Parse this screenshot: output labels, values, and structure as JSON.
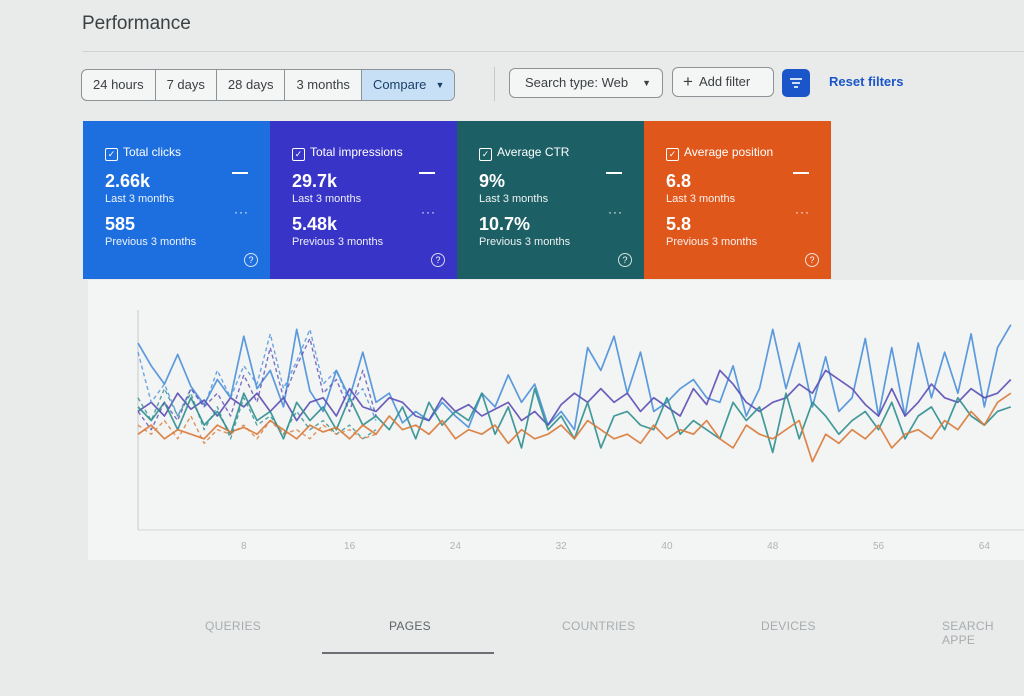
{
  "header": {
    "title": "Performance"
  },
  "toolbar": {
    "ranges": [
      "24 hours",
      "7 days",
      "28 days",
      "3 months",
      "Compare"
    ],
    "search_type": "Search type: Web",
    "add_filter": "Add filter",
    "reset_filters": "Reset filters"
  },
  "metrics": [
    {
      "label": "Total clicks",
      "current": "2.66k",
      "current_period": "Last 3 months",
      "previous": "585",
      "previous_period": "Previous 3 months",
      "color": "#1d6fe0"
    },
    {
      "label": "Total impressions",
      "current": "29.7k",
      "current_period": "Last 3 months",
      "previous": "5.48k",
      "previous_period": "Previous 3 months",
      "color": "#3834c7"
    },
    {
      "label": "Average CTR",
      "current": "9%",
      "current_period": "Last 3 months",
      "previous": "10.7%",
      "previous_period": "Previous 3 months",
      "color": "#1c5f65"
    },
    {
      "label": "Average position",
      "current": "6.8",
      "current_period": "Last 3 months",
      "previous": "5.8",
      "previous_period": "Previous 3 months",
      "color": "#e0571c"
    }
  ],
  "chart_data": {
    "type": "line",
    "x_ticks": [
      "8",
      "16",
      "24",
      "32",
      "40",
      "48",
      "56",
      "64"
    ],
    "x_range": [
      0,
      67
    ],
    "y_range": [
      0,
      1
    ],
    "grid": false,
    "series": [
      {
        "color": "#4a90d9",
        "style": "solid",
        "values": [
          0.82,
          0.72,
          0.64,
          0.77,
          0.63,
          0.55,
          0.66,
          0.58,
          0.85,
          0.62,
          0.7,
          0.54,
          0.88,
          0.61,
          0.52,
          0.7,
          0.58,
          0.78,
          0.56,
          0.6,
          0.47,
          0.52,
          0.48,
          0.56,
          0.5,
          0.45,
          0.6,
          0.54,
          0.68,
          0.56,
          0.64,
          0.46,
          0.52,
          0.44,
          0.8,
          0.7,
          0.85,
          0.6,
          0.78,
          0.52,
          0.56,
          0.62,
          0.66,
          0.58,
          0.56,
          0.72,
          0.5,
          0.62,
          0.88,
          0.62,
          0.82,
          0.54,
          0.76,
          0.52,
          0.58,
          0.84,
          0.5,
          0.8,
          0.5,
          0.82,
          0.58,
          0.78,
          0.6,
          0.86,
          0.54,
          0.8,
          0.9
        ]
      },
      {
        "color": "#5b4fb5",
        "style": "solid",
        "values": [
          0.52,
          0.56,
          0.5,
          0.6,
          0.53,
          0.57,
          0.5,
          0.58,
          0.54,
          0.6,
          0.52,
          0.58,
          0.48,
          0.56,
          0.58,
          0.5,
          0.62,
          0.54,
          0.52,
          0.58,
          0.56,
          0.5,
          0.48,
          0.58,
          0.52,
          0.55,
          0.5,
          0.53,
          0.56,
          0.48,
          0.52,
          0.46,
          0.55,
          0.6,
          0.56,
          0.62,
          0.56,
          0.6,
          0.52,
          0.58,
          0.54,
          0.5,
          0.62,
          0.55,
          0.7,
          0.64,
          0.56,
          0.52,
          0.56,
          0.58,
          0.64,
          0.6,
          0.7,
          0.66,
          0.62,
          0.55,
          0.5,
          0.62,
          0.5,
          0.56,
          0.64,
          0.58,
          0.56,
          0.62,
          0.58,
          0.6,
          0.66
        ]
      },
      {
        "color": "#2f8f8f",
        "style": "solid",
        "values": [
          0.54,
          0.48,
          0.56,
          0.44,
          0.58,
          0.46,
          0.52,
          0.42,
          0.6,
          0.48,
          0.52,
          0.4,
          0.56,
          0.48,
          0.54,
          0.44,
          0.58,
          0.46,
          0.5,
          0.44,
          0.54,
          0.4,
          0.56,
          0.46,
          0.52,
          0.48,
          0.6,
          0.42,
          0.54,
          0.36,
          0.62,
          0.44,
          0.5,
          0.4,
          0.56,
          0.36,
          0.5,
          0.52,
          0.46,
          0.44,
          0.58,
          0.42,
          0.48,
          0.44,
          0.4,
          0.56,
          0.48,
          0.54,
          0.34,
          0.6,
          0.4,
          0.56,
          0.5,
          0.42,
          0.48,
          0.52,
          0.44,
          0.56,
          0.4,
          0.5,
          0.54,
          0.44,
          0.58,
          0.5,
          0.46,
          0.52,
          0.54
        ]
      },
      {
        "color": "#d97a3a",
        "style": "solid",
        "values": [
          0.42,
          0.46,
          0.4,
          0.44,
          0.42,
          0.4,
          0.46,
          0.43,
          0.45,
          0.42,
          0.48,
          0.44,
          0.4,
          0.46,
          0.43,
          0.45,
          0.4,
          0.46,
          0.42,
          0.5,
          0.44,
          0.46,
          0.42,
          0.48,
          0.4,
          0.44,
          0.42,
          0.46,
          0.38,
          0.44,
          0.4,
          0.42,
          0.46,
          0.4,
          0.48,
          0.44,
          0.4,
          0.42,
          0.38,
          0.46,
          0.4,
          0.44,
          0.42,
          0.48,
          0.4,
          0.36,
          0.46,
          0.42,
          0.4,
          0.44,
          0.48,
          0.3,
          0.42,
          0.38,
          0.44,
          0.4,
          0.46,
          0.36,
          0.42,
          0.44,
          0.4,
          0.48,
          0.44,
          0.52,
          0.46,
          0.56,
          0.6
        ]
      },
      {
        "color": "#4a90d9",
        "style": "dashed",
        "values": [
          0.78,
          0.56,
          0.64,
          0.5,
          0.62,
          0.54,
          0.7,
          0.58,
          0.72,
          0.64,
          0.86,
          0.62,
          0.74,
          0.88,
          0.64,
          0.7,
          0.56,
          0.62,
          0.48
        ]
      },
      {
        "color": "#5b4fb5",
        "style": "dashed",
        "values": [
          0.52,
          0.44,
          0.56,
          0.48,
          0.62,
          0.54,
          0.6,
          0.5,
          0.68,
          0.56,
          0.8,
          0.58,
          0.72,
          0.84,
          0.6,
          0.66,
          0.52,
          0.7,
          0.5
        ]
      },
      {
        "color": "#2f8f8f",
        "style": "dashed",
        "values": [
          0.58,
          0.48,
          0.62,
          0.5,
          0.6,
          0.44,
          0.54,
          0.4,
          0.58,
          0.46,
          0.5,
          0.42,
          0.52,
          0.44,
          0.48,
          0.42,
          0.46,
          0.4,
          0.44
        ]
      },
      {
        "color": "#d97a3a",
        "style": "dashed",
        "values": [
          0.46,
          0.42,
          0.48,
          0.4,
          0.5,
          0.38,
          0.44,
          0.42,
          0.46,
          0.4,
          0.48,
          0.42,
          0.44,
          0.4,
          0.46,
          0.42,
          0.44,
          0.4,
          0.42
        ]
      }
    ]
  },
  "tabs": [
    "QUERIES",
    "PAGES",
    "COUNTRIES",
    "DEVICES",
    "SEARCH APPE"
  ]
}
